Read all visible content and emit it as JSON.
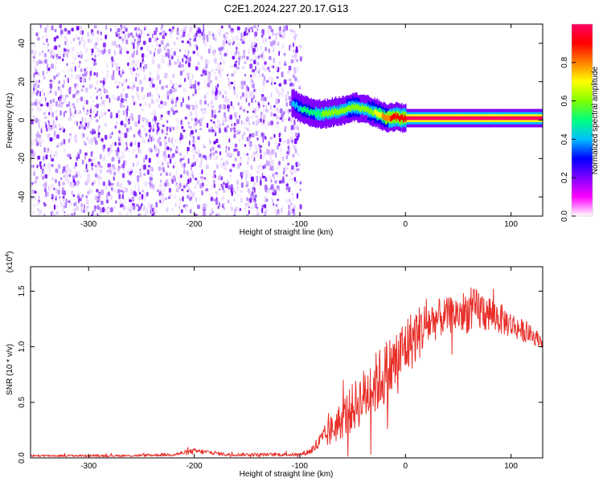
{
  "title": "C2E1.2024.227.20.17.G13",
  "chart_data": [
    {
      "type": "heatmap",
      "xlabel": "Height of straight line (km)",
      "ylabel": "Frequency (Hz)",
      "xlim": [
        -355,
        130
      ],
      "ylim": [
        -50,
        50
      ],
      "xticks": [
        -300,
        -200,
        -100,
        0,
        100
      ],
      "yticks": [
        -40,
        -20,
        0,
        20,
        40
      ],
      "colorbar": {
        "label": "Normalized spectral amplitude",
        "range": [
          0,
          1
        ],
        "ticks": [
          "0.0",
          "0.2",
          "0.4",
          "0.6",
          "0.8"
        ],
        "colors": [
          "#ffffff",
          "#ff00ff",
          "#7f00ff",
          "#0000ff",
          "#00bfff",
          "#00ff80",
          "#80ff00",
          "#ffff00",
          "#ff8000",
          "#ff0000",
          "#ff0060"
        ]
      },
      "noise_region": {
        "x_range": [
          -355,
          -100
        ],
        "freq_range": [
          -50,
          50
        ],
        "amplitude": 0.15
      },
      "signal_ridge": {
        "x": [
          -108,
          -100,
          -90,
          -80,
          -70,
          -60,
          -50,
          -40,
          -30,
          -25,
          -20,
          -15,
          -10,
          -5,
          0,
          20,
          50,
          80,
          110,
          130
        ],
        "freq": [
          9,
          6,
          4,
          3,
          4,
          5,
          7,
          6,
          4,
          3,
          1.5,
          1,
          2,
          1,
          1,
          1,
          1,
          1,
          1,
          1
        ],
        "amplitude": [
          0.4,
          0.5,
          0.55,
          0.6,
          0.65,
          0.65,
          0.7,
          0.65,
          0.7,
          0.75,
          0.85,
          0.9,
          0.9,
          0.95,
          1.0,
          1.0,
          1.0,
          1.0,
          1.0,
          1.0
        ]
      }
    },
    {
      "type": "line",
      "xlabel": "Height of straight line (km)",
      "ylabel": "SNR (10 * v/v)",
      "yscale_label": "(x10",
      "yscale_exponent": "4",
      "xlim": [
        -355,
        130
      ],
      "ylim": [
        0,
        1.72
      ],
      "xticks": [
        -300,
        -200,
        -100,
        0,
        100
      ],
      "yticks": [
        0.0,
        0.5,
        1.0,
        1.5
      ],
      "ytick_labels": [
        "0.0",
        "0.5",
        "1.0",
        "1.5"
      ],
      "line_color": "#e8302a",
      "envelope": {
        "x": [
          -355,
          -260,
          -220,
          -200,
          -185,
          -170,
          -100,
          -90,
          -80,
          -70,
          -60,
          -50,
          -40,
          -30,
          -20,
          -10,
          0,
          10,
          20,
          30,
          40,
          50,
          60,
          70,
          80,
          90,
          100,
          110,
          120,
          130
        ],
        "mid": [
          0.02,
          0.02,
          0.03,
          0.06,
          0.05,
          0.03,
          0.03,
          0.06,
          0.15,
          0.25,
          0.35,
          0.45,
          0.55,
          0.65,
          0.75,
          0.85,
          1.0,
          1.1,
          1.2,
          1.25,
          1.28,
          1.3,
          1.32,
          1.33,
          1.3,
          1.25,
          1.2,
          1.15,
          1.1,
          1.05
        ],
        "amp": [
          0.01,
          0.01,
          0.015,
          0.025,
          0.02,
          0.015,
          0.015,
          0.03,
          0.09,
          0.14,
          0.18,
          0.22,
          0.25,
          0.28,
          0.3,
          0.3,
          0.28,
          0.26,
          0.22,
          0.18,
          0.16,
          0.18,
          0.2,
          0.2,
          0.17,
          0.14,
          0.12,
          0.1,
          0.08,
          0.06
        ]
      }
    }
  ]
}
